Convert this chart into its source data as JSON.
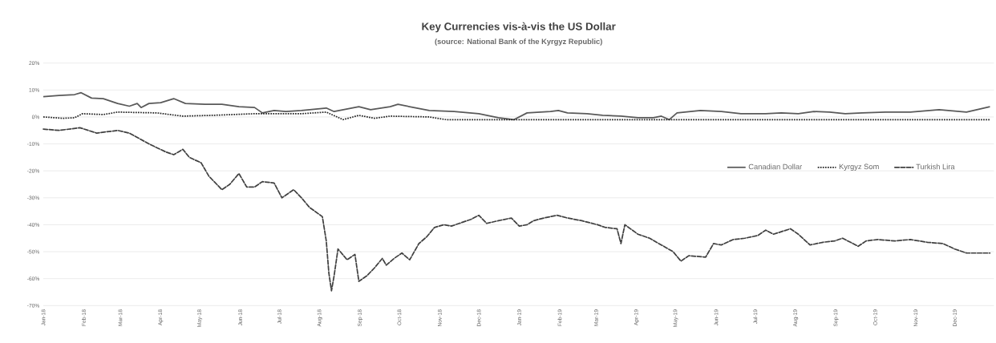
{
  "chart_data": {
    "type": "line",
    "title": "Key Currencies vis-à-vis the US Dollar",
    "subtitle": "(source: National Bank of the Kyrgyz Republic)",
    "xlim": [
      "2018-01-01",
      "2019-12-31"
    ],
    "xticks": [
      {
        "value": "2018-01-01",
        "label": "Jan-18"
      },
      {
        "value": "2018-02-01",
        "label": "Feb-18"
      },
      {
        "value": "2018-03-01",
        "label": "Mar-18"
      },
      {
        "value": "2018-04-01",
        "label": "Apr-18"
      },
      {
        "value": "2018-05-01",
        "label": "May-18"
      },
      {
        "value": "2018-06-01",
        "label": "Jun-18"
      },
      {
        "value": "2018-07-01",
        "label": "Jul-18"
      },
      {
        "value": "2018-08-01",
        "label": "Aug-18"
      },
      {
        "value": "2018-09-01",
        "label": "Sep-18"
      },
      {
        "value": "2018-10-01",
        "label": "Oct-18"
      },
      {
        "value": "2018-11-01",
        "label": "Nov-18"
      },
      {
        "value": "2018-12-01",
        "label": "Dec-18"
      },
      {
        "value": "2019-01-01",
        "label": "Jan-19"
      },
      {
        "value": "2019-02-01",
        "label": "Feb-19"
      },
      {
        "value": "2019-03-01",
        "label": "Mar-19"
      },
      {
        "value": "2019-04-01",
        "label": "Apr-19"
      },
      {
        "value": "2019-05-01",
        "label": "May-19"
      },
      {
        "value": "2019-06-01",
        "label": "Jun-19"
      },
      {
        "value": "2019-07-01",
        "label": "Jul-19"
      },
      {
        "value": "2019-08-01",
        "label": "Aug-19"
      },
      {
        "value": "2019-09-01",
        "label": "Sep-19"
      },
      {
        "value": "2019-10-01",
        "label": "Oct-19"
      },
      {
        "value": "2019-11-01",
        "label": "Nov-19"
      },
      {
        "value": "2019-12-01",
        "label": "Dec-19"
      }
    ],
    "ylim": [
      -70,
      20
    ],
    "yticks": [
      {
        "value": -70,
        "label": "-70%"
      },
      {
        "value": -60,
        "label": "-60%"
      },
      {
        "value": -50,
        "label": "-50%"
      },
      {
        "value": -40,
        "label": "-40%"
      },
      {
        "value": -30,
        "label": "-30%"
      },
      {
        "value": -20,
        "label": "-20%"
      },
      {
        "value": -10,
        "label": "-10%"
      },
      {
        "value": 0,
        "label": "0%"
      },
      {
        "value": 10,
        "label": "10%"
      },
      {
        "value": 20,
        "label": "20%"
      }
    ],
    "grid": "y",
    "legend": "right",
    "series": [
      {
        "name": "Canadian Dollar",
        "color": "#595959",
        "line_style": "solid",
        "x": [
          "2018-01-01",
          "2018-01-13",
          "2018-01-25",
          "2018-01-30",
          "2018-02-07",
          "2018-02-16",
          "2018-02-27",
          "2018-03-08",
          "2018-03-14",
          "2018-03-17",
          "2018-03-23",
          "2018-04-01",
          "2018-04-11",
          "2018-04-20",
          "2018-05-05",
          "2018-05-18",
          "2018-05-31",
          "2018-06-12",
          "2018-06-18",
          "2018-06-27",
          "2018-07-06",
          "2018-07-18",
          "2018-08-06",
          "2018-08-12",
          "2018-08-31",
          "2018-09-09",
          "2018-09-24",
          "2018-09-30",
          "2018-10-12",
          "2018-10-24",
          "2018-11-12",
          "2018-12-01",
          "2018-12-16",
          "2018-12-28",
          "2019-01-07",
          "2019-01-25",
          "2019-01-31",
          "2019-02-07",
          "2019-02-22",
          "2019-03-06",
          "2019-03-20",
          "2019-04-02",
          "2019-04-14",
          "2019-04-20",
          "2019-04-26",
          "2019-05-02",
          "2019-05-20",
          "2019-06-05",
          "2019-06-20",
          "2019-07-09",
          "2019-07-21",
          "2019-08-03",
          "2019-08-15",
          "2019-08-27",
          "2019-09-08",
          "2019-09-21",
          "2019-10-09",
          "2019-10-28",
          "2019-11-19",
          "2019-12-10",
          "2019-12-28"
        ],
        "values": [
          7.5,
          8,
          8.3,
          9,
          7,
          6.8,
          5,
          4,
          5,
          3.5,
          5,
          5.3,
          6.8,
          5,
          4.7,
          4.7,
          3.8,
          3.5,
          1.5,
          2.4,
          2,
          2.4,
          3.3,
          2,
          3.8,
          2.7,
          3.8,
          4.7,
          3.5,
          2.4,
          2,
          1.2,
          -0.3,
          -1,
          1.5,
          2,
          2.4,
          1.5,
          1.2,
          0.6,
          0.3,
          -0.3,
          -0.3,
          0.3,
          -1,
          1.5,
          2.4,
          2,
          1.2,
          1.2,
          1.5,
          1.2,
          2,
          1.8,
          1.2,
          1.5,
          1.8,
          1.8,
          2.7,
          1.8,
          3.8
        ]
      },
      {
        "name": "Kyrgyz Som",
        "color": "#262626",
        "line_style": "dotted",
        "x": [
          "2018-01-01",
          "2018-01-16",
          "2018-01-25",
          "2018-01-31",
          "2018-02-16",
          "2018-02-27",
          "2018-03-29",
          "2018-04-18",
          "2018-05-11",
          "2018-06-12",
          "2018-07-18",
          "2018-08-06",
          "2018-08-19",
          "2018-08-31",
          "2018-09-12",
          "2018-09-24",
          "2018-10-24",
          "2018-11-06",
          "2019-01-31",
          "2019-06-03",
          "2019-10-03",
          "2019-12-28"
        ],
        "values": [
          0,
          -0.5,
          -0.3,
          1.2,
          0.9,
          1.8,
          1.5,
          0.3,
          0.6,
          1.2,
          1.2,
          1.8,
          -1,
          0.6,
          -0.5,
          0.3,
          0,
          -1,
          -1,
          -1,
          -1,
          -1
        ]
      },
      {
        "name": "Turkish Lira",
        "color": "#404040",
        "line_style": "dashed",
        "x": [
          "2018-01-01",
          "2018-01-13",
          "2018-01-29",
          "2018-02-11",
          "2018-02-27",
          "2018-03-08",
          "2018-03-23",
          "2018-04-05",
          "2018-04-11",
          "2018-04-18",
          "2018-04-23",
          "2018-05-02",
          "2018-05-08",
          "2018-05-18",
          "2018-05-24",
          "2018-05-31",
          "2018-06-06",
          "2018-06-12",
          "2018-06-18",
          "2018-06-27",
          "2018-07-03",
          "2018-07-12",
          "2018-07-18",
          "2018-07-24",
          "2018-08-03",
          "2018-08-06",
          "2018-08-08",
          "2018-08-10",
          "2018-08-12",
          "2018-08-15",
          "2018-08-22",
          "2018-08-28",
          "2018-08-31",
          "2018-09-06",
          "2018-09-12",
          "2018-09-18",
          "2018-09-21",
          "2018-09-27",
          "2018-10-03",
          "2018-10-09",
          "2018-10-16",
          "2018-10-22",
          "2018-10-28",
          "2018-11-04",
          "2018-11-10",
          "2018-11-16",
          "2018-11-25",
          "2018-12-01",
          "2018-12-07",
          "2018-12-16",
          "2018-12-26",
          "2019-01-01",
          "2019-01-07",
          "2019-01-12",
          "2019-01-20",
          "2019-01-30",
          "2019-02-07",
          "2019-02-18",
          "2019-03-02",
          "2019-03-08",
          "2019-03-17",
          "2019-03-20",
          "2019-03-23",
          "2019-04-02",
          "2019-04-11",
          "2019-04-20",
          "2019-04-29",
          "2019-05-05",
          "2019-05-11",
          "2019-05-24",
          "2019-05-30",
          "2019-06-05",
          "2019-06-14",
          "2019-06-23",
          "2019-07-03",
          "2019-07-09",
          "2019-07-15",
          "2019-07-28",
          "2019-08-03",
          "2019-08-12",
          "2019-08-22",
          "2019-08-31",
          "2019-09-06",
          "2019-09-18",
          "2019-09-24",
          "2019-10-03",
          "2019-10-16",
          "2019-10-28",
          "2019-11-10",
          "2019-11-22",
          "2019-12-01",
          "2019-12-10",
          "2019-12-28"
        ],
        "values": [
          -4.5,
          -5,
          -4,
          -6,
          -5,
          -6,
          -10,
          -13,
          -14,
          -12,
          -15,
          -17,
          -22,
          -27,
          -25,
          -21,
          -26,
          -26,
          -24,
          -24.5,
          -30,
          -27,
          -30,
          -33.5,
          -37,
          -46,
          -58,
          -64.5,
          -59,
          -49,
          -53,
          -51,
          -61,
          -59,
          -56,
          -52.5,
          -55,
          -52.5,
          -50.5,
          -53,
          -47,
          -44.5,
          -41,
          -40,
          -40.5,
          -39.5,
          -38,
          -36.5,
          -39.5,
          -38.5,
          -37.5,
          -40.5,
          -40,
          -38.5,
          -37.5,
          -36.5,
          -37.5,
          -38.5,
          -40,
          -41,
          -41.5,
          -47,
          -40,
          -43.5,
          -45,
          -47.5,
          -50,
          -53.5,
          -51.5,
          -52,
          -47,
          -47.5,
          -45.5,
          -45,
          -44,
          -42,
          -43.5,
          -41.5,
          -43.5,
          -47.5,
          -46.5,
          -46,
          -45,
          -48,
          -46,
          -45.5,
          -46,
          -45.5,
          -46.5,
          -47,
          -49,
          -50.5,
          -50.5
        ]
      }
    ]
  }
}
